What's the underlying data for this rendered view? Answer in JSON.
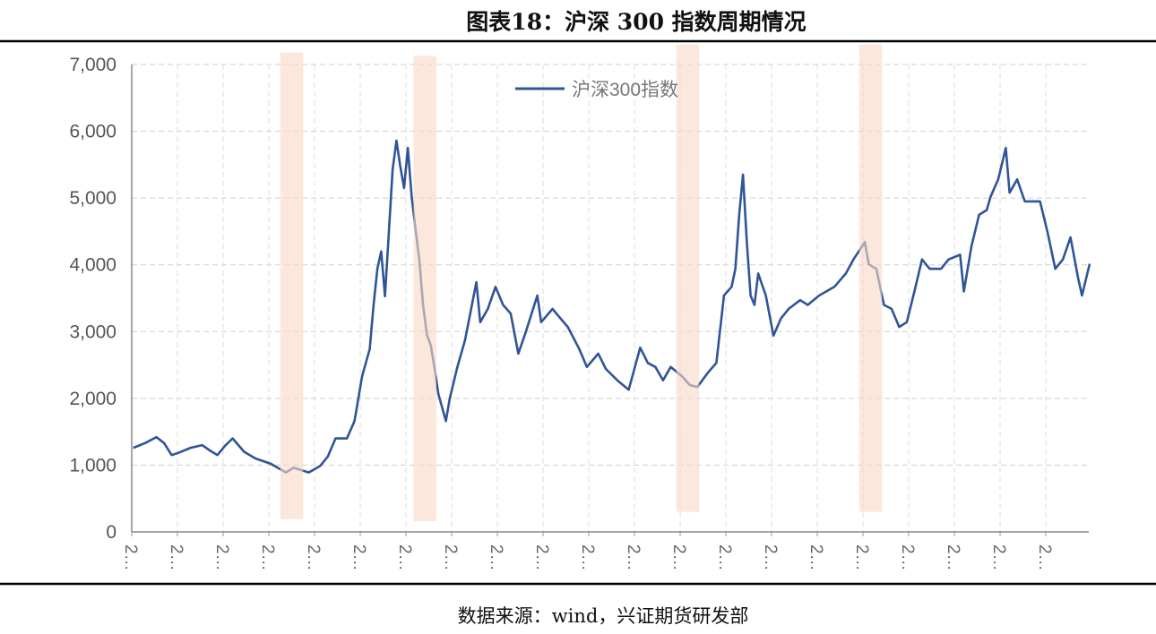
{
  "title": "图表18：沪深 300 指数周期情况",
  "source": "数据来源：wind，兴证期货研发部",
  "chart_data": {
    "type": "line",
    "title": "图表18：沪深 300 指数周期情况",
    "xlabel": "",
    "ylabel": "",
    "ylim": [
      0,
      7000
    ],
    "yticks": [
      "0",
      "1,000",
      "2,000",
      "3,000",
      "4,000",
      "5,000",
      "6,000",
      "7,000"
    ],
    "ytick_values": [
      0,
      1000,
      2000,
      3000,
      4000,
      5000,
      6000,
      7000
    ],
    "xlim": [
      "2002-01",
      "2022-12"
    ],
    "xtick_dates": [
      "2002",
      "2003",
      "2004",
      "2005",
      "2006",
      "2007",
      "2008",
      "2009",
      "2010",
      "2011",
      "2012",
      "2013",
      "2014",
      "2015",
      "2016",
      "2017",
      "2018",
      "2019",
      "2020",
      "2021",
      "2022"
    ],
    "xtick_label": "2…",
    "grid": true,
    "legend": "top-center",
    "line_color": "#2f5597",
    "band_color": "#f8d9c6",
    "series": [
      {
        "name": "沪深300指数",
        "points": [
          [
            "2002-01",
            1260
          ],
          [
            "2002-04",
            1330
          ],
          [
            "2002-07",
            1420
          ],
          [
            "2002-09",
            1330
          ],
          [
            "2002-11",
            1150
          ],
          [
            "2003-01",
            1190
          ],
          [
            "2003-04",
            1260
          ],
          [
            "2003-07",
            1300
          ],
          [
            "2003-09",
            1220
          ],
          [
            "2003-11",
            1150
          ],
          [
            "2004-01",
            1290
          ],
          [
            "2004-03",
            1400
          ],
          [
            "2004-06",
            1200
          ],
          [
            "2004-09",
            1100
          ],
          [
            "2005-01",
            1020
          ],
          [
            "2005-05",
            890
          ],
          [
            "2005-07",
            960
          ],
          [
            "2005-11",
            890
          ],
          [
            "2006-02",
            990
          ],
          [
            "2006-04",
            1130
          ],
          [
            "2006-06",
            1400
          ],
          [
            "2006-09",
            1400
          ],
          [
            "2006-11",
            1660
          ],
          [
            "2007-01",
            2330
          ],
          [
            "2007-03",
            2740
          ],
          [
            "2007-04",
            3400
          ],
          [
            "2007-05",
            3940
          ],
          [
            "2007-06",
            4200
          ],
          [
            "2007-07",
            3530
          ],
          [
            "2007-08",
            4480
          ],
          [
            "2007-09",
            5420
          ],
          [
            "2007-10",
            5860
          ],
          [
            "2007-11",
            5480
          ],
          [
            "2007-12",
            5150
          ],
          [
            "2008-01",
            5750
          ],
          [
            "2008-02",
            5020
          ],
          [
            "2008-03",
            4540
          ],
          [
            "2008-04",
            4080
          ],
          [
            "2008-05",
            3400
          ],
          [
            "2008-06",
            2950
          ],
          [
            "2008-07",
            2800
          ],
          [
            "2008-08",
            2460
          ],
          [
            "2008-09",
            2070
          ],
          [
            "2008-11",
            1660
          ],
          [
            "2008-12",
            2000
          ],
          [
            "2009-02",
            2470
          ],
          [
            "2009-04",
            2870
          ],
          [
            "2009-07",
            3740
          ],
          [
            "2009-08",
            3140
          ],
          [
            "2009-10",
            3340
          ],
          [
            "2009-12",
            3670
          ],
          [
            "2010-02",
            3400
          ],
          [
            "2010-04",
            3270
          ],
          [
            "2010-06",
            2670
          ],
          [
            "2010-08",
            3000
          ],
          [
            "2010-11",
            3540
          ],
          [
            "2010-12",
            3140
          ],
          [
            "2011-03",
            3340
          ],
          [
            "2011-04",
            3270
          ],
          [
            "2011-07",
            3070
          ],
          [
            "2011-10",
            2740
          ],
          [
            "2011-12",
            2470
          ],
          [
            "2012-03",
            2670
          ],
          [
            "2012-05",
            2440
          ],
          [
            "2012-08",
            2270
          ],
          [
            "2012-11",
            2130
          ],
          [
            "2013-02",
            2760
          ],
          [
            "2013-04",
            2530
          ],
          [
            "2013-06",
            2470
          ],
          [
            "2013-08",
            2270
          ],
          [
            "2013-10",
            2470
          ],
          [
            "2014-01",
            2330
          ],
          [
            "2014-03",
            2200
          ],
          [
            "2014-05",
            2170
          ],
          [
            "2014-08",
            2400
          ],
          [
            "2014-10",
            2530
          ],
          [
            "2014-12",
            3540
          ],
          [
            "2015-02",
            3670
          ],
          [
            "2015-03",
            3940
          ],
          [
            "2015-04",
            4750
          ],
          [
            "2015-05",
            5350
          ],
          [
            "2015-06",
            4340
          ],
          [
            "2015-07",
            3540
          ],
          [
            "2015-08",
            3400
          ],
          [
            "2015-09",
            3870
          ],
          [
            "2015-11",
            3540
          ],
          [
            "2016-01",
            2940
          ],
          [
            "2016-03",
            3200
          ],
          [
            "2016-05",
            3340
          ],
          [
            "2016-08",
            3470
          ],
          [
            "2016-10",
            3400
          ],
          [
            "2017-01",
            3540
          ],
          [
            "2017-05",
            3670
          ],
          [
            "2017-08",
            3870
          ],
          [
            "2017-10",
            4080
          ],
          [
            "2018-01",
            4340
          ],
          [
            "2018-02",
            4010
          ],
          [
            "2018-04",
            3940
          ],
          [
            "2018-06",
            3400
          ],
          [
            "2018-08",
            3340
          ],
          [
            "2018-10",
            3070
          ],
          [
            "2018-12",
            3140
          ],
          [
            "2019-02",
            3600
          ],
          [
            "2019-04",
            4080
          ],
          [
            "2019-06",
            3940
          ],
          [
            "2019-09",
            3940
          ],
          [
            "2019-11",
            4080
          ],
          [
            "2020-02",
            4150
          ],
          [
            "2020-03",
            3600
          ],
          [
            "2020-05",
            4280
          ],
          [
            "2020-07",
            4750
          ],
          [
            "2020-09",
            4820
          ],
          [
            "2020-10",
            5020
          ],
          [
            "2020-12",
            5280
          ],
          [
            "2021-02",
            5750
          ],
          [
            "2021-03",
            5080
          ],
          [
            "2021-05",
            5280
          ],
          [
            "2021-07",
            4950
          ],
          [
            "2021-11",
            4950
          ],
          [
            "2022-01",
            4480
          ],
          [
            "2022-03",
            3940
          ],
          [
            "2022-05",
            4080
          ],
          [
            "2022-07",
            4410
          ],
          [
            "2022-09",
            3800
          ],
          [
            "2022-10",
            3540
          ],
          [
            "2022-12",
            4010
          ]
        ]
      }
    ],
    "highlight_bands": [
      {
        "from": "2005-04",
        "to": "2005-10",
        "y": [
          190,
          7180
        ]
      },
      {
        "from": "2008-03",
        "to": "2008-09",
        "y": [
          160,
          7130
        ]
      },
      {
        "from": "2013-12",
        "to": "2014-06",
        "y": [
          300,
          7300
        ]
      },
      {
        "from": "2017-12",
        "to": "2018-06",
        "y": [
          300,
          7300
        ]
      }
    ]
  }
}
